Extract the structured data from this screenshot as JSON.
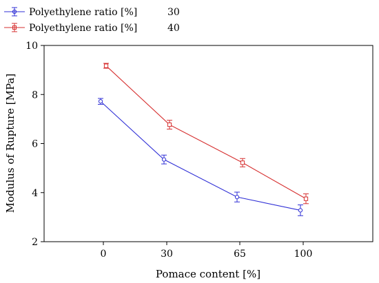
{
  "chart_data": {
    "type": "line",
    "xlabel": "Pomace content [%]",
    "ylabel": "Modulus of Rupture [MPa]",
    "categories": [
      "0",
      "30",
      "65",
      "100"
    ],
    "ylim": [
      2,
      10
    ],
    "yticks": [
      2,
      4,
      6,
      8,
      10
    ],
    "grid": false,
    "legend_position": "top-left",
    "series": [
      {
        "name": "Polyethylene ratio [%]",
        "legend_value": "30",
        "color": "#2f2fd6",
        "marker": "circle",
        "values": [
          7.72,
          5.35,
          3.82,
          3.28
        ],
        "error": [
          0.12,
          0.18,
          0.2,
          0.22
        ]
      },
      {
        "name": "Polyethylene ratio [%]",
        "legend_value": "40",
        "color": "#d62f2f",
        "marker": "square",
        "values": [
          9.17,
          6.77,
          5.22,
          3.75
        ],
        "error": [
          0.1,
          0.18,
          0.17,
          0.2
        ]
      }
    ]
  }
}
